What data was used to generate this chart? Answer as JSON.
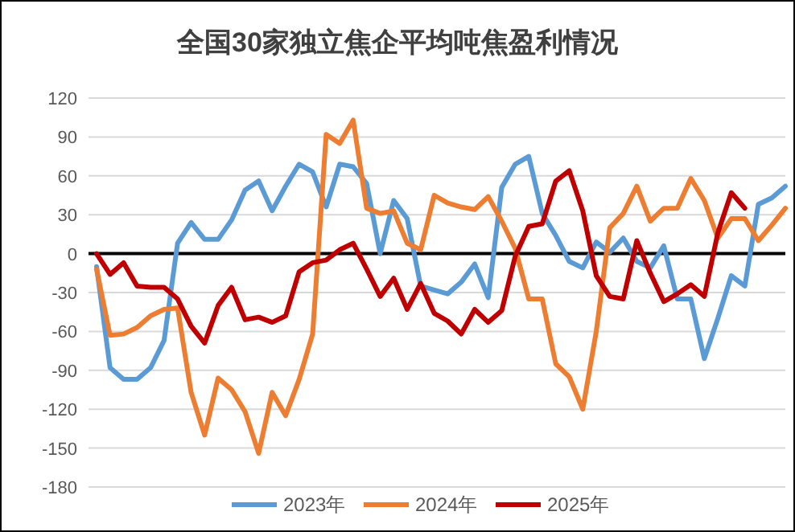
{
  "chart_data": {
    "type": "line",
    "title": "全国30家独立焦企平均吨焦盈利情况",
    "categories": [
      null,
      null,
      null,
      null,
      null,
      null,
      null,
      null,
      null,
      null,
      null,
      null,
      null,
      null,
      null,
      null,
      null,
      null,
      null,
      null,
      null,
      null,
      null,
      null,
      null,
      null,
      null,
      null,
      null,
      null,
      null,
      null,
      null,
      null,
      null,
      null,
      null,
      null,
      null,
      null,
      null,
      null,
      null,
      null,
      null,
      null,
      null,
      null,
      null,
      null,
      null,
      null
    ],
    "series": [
      {
        "name": "2023年",
        "color": "#5b9bd5",
        "values": [
          -10,
          -88,
          -97,
          -97,
          -88,
          -67,
          8,
          24,
          11,
          11,
          26,
          49,
          56,
          33,
          52,
          69,
          63,
          36,
          69,
          67,
          54,
          0,
          41,
          27,
          -25,
          -28,
          -31,
          -22,
          -8,
          -34,
          51,
          69,
          75,
          31,
          14,
          -6,
          -11,
          9,
          1,
          12,
          -6,
          -11,
          6,
          -35,
          -35,
          -81,
          -50,
          -17,
          -25,
          38,
          43,
          52
        ]
      },
      {
        "name": "2024年",
        "color": "#ed7d31",
        "values": [
          -12,
          -63,
          -62,
          -57,
          -48,
          -43,
          -42,
          -107,
          -140,
          -96,
          -105,
          -122,
          -154,
          -107,
          -125,
          -97,
          -62,
          92,
          85,
          103,
          35,
          31,
          33,
          8,
          3,
          45,
          39,
          36,
          34,
          44,
          25,
          4,
          -35,
          -35,
          -85,
          -95,
          -120,
          -60,
          20,
          31,
          52,
          25,
          35,
          35,
          58,
          41,
          12,
          27,
          27,
          10,
          22,
          35
        ]
      },
      {
        "name": "2025年",
        "color": "#c00000",
        "values": [
          0,
          -16,
          -7,
          -25,
          -26,
          -26,
          -35,
          -56,
          -69,
          -40,
          -26,
          -51,
          -49,
          -53,
          -48,
          -14,
          -7,
          -5,
          3,
          8,
          -12,
          -33,
          -19,
          -43,
          -23,
          -46,
          -52,
          -62,
          -43,
          -53,
          -44,
          -2,
          21,
          23,
          56,
          64,
          33,
          -17,
          -33,
          -35,
          10,
          -15,
          -37,
          -31,
          -24,
          -33,
          16,
          47,
          35,
          null,
          null,
          null
        ]
      }
    ],
    "ylim": [
      -180,
      120
    ],
    "yticks": [
      -180,
      -150,
      -120,
      -90,
      -60,
      -30,
      0,
      30,
      60,
      90,
      120
    ],
    "grid": "y",
    "legend": "bottom",
    "tick_labels": "y"
  }
}
